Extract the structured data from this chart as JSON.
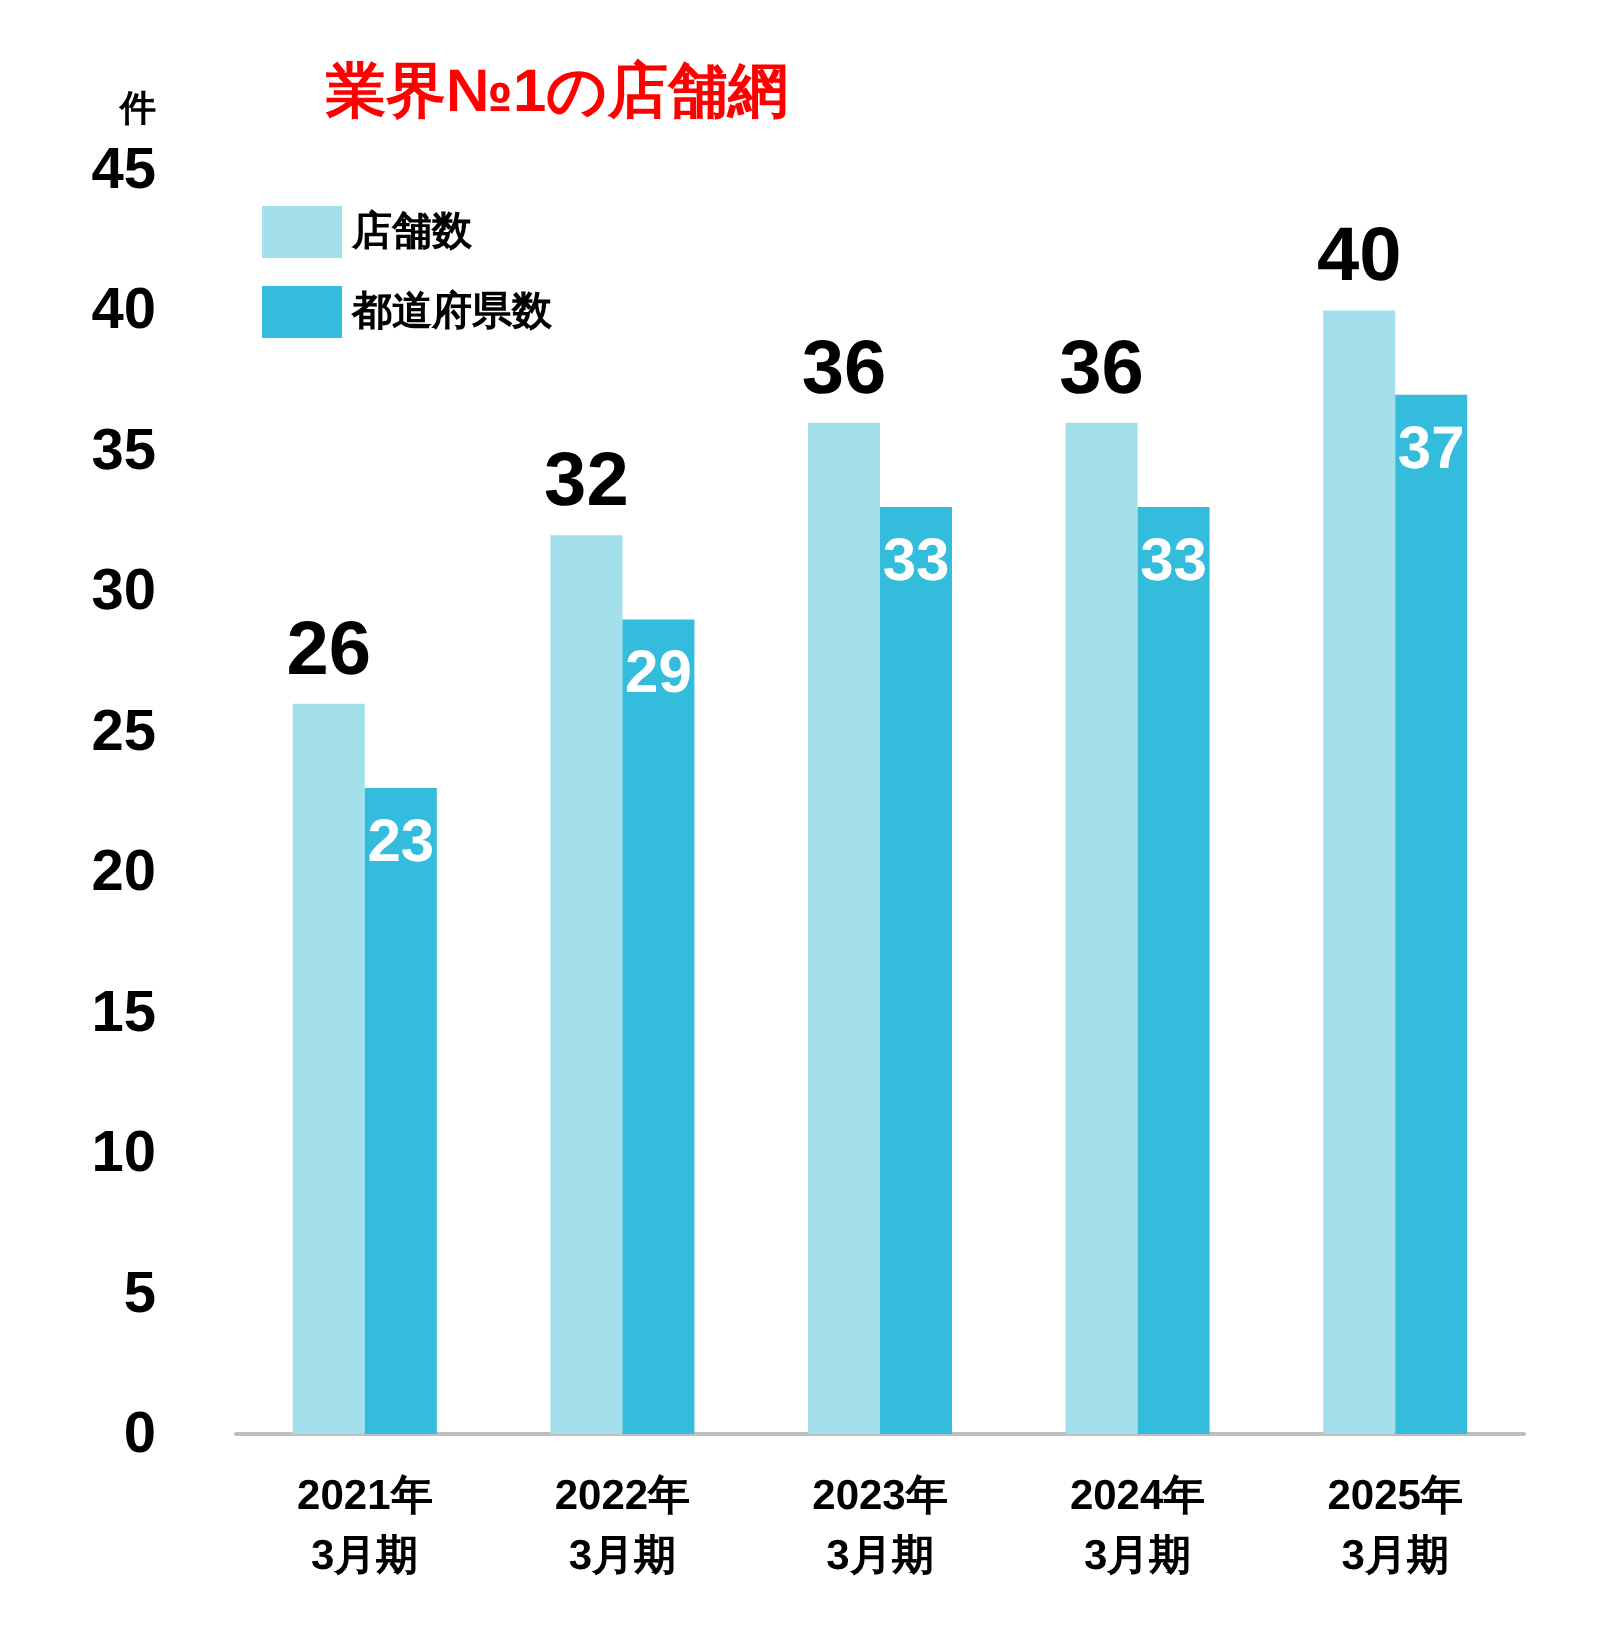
{
  "chart_data": {
    "type": "bar",
    "title": "業界№1の店舗網",
    "ylabel": "件",
    "categories": [
      "2021年\n3月期",
      "2022年\n3月期",
      "2023年\n3月期",
      "2024年\n3月期",
      "2025年\n3月期"
    ],
    "series": [
      {
        "name": "店舗数",
        "color": "#a3e0ec",
        "values": [
          26,
          32,
          36,
          36,
          40
        ]
      },
      {
        "name": "都道府県数",
        "color": "#33bcdb",
        "values": [
          23,
          29,
          33,
          33,
          37
        ]
      }
    ],
    "ylim": [
      0,
      45
    ],
    "yticks": [
      0,
      5,
      10,
      15,
      20,
      25,
      30,
      35,
      40,
      45
    ],
    "grid": false,
    "legend": "top left",
    "data_labels": true
  }
}
